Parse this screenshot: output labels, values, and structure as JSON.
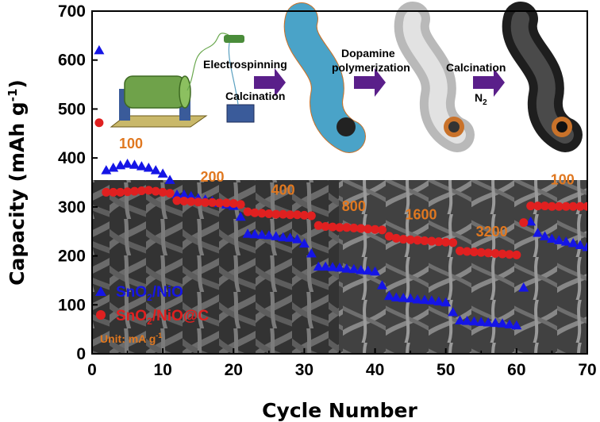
{
  "chart_data": {
    "type": "scatter",
    "xlabel": "Cycle Number",
    "ylabel": "Capacity (mAh g",
    "ylabel_sup": "-1",
    "ylabel_end": ")",
    "xlim": [
      0,
      70
    ],
    "ylim": [
      0,
      700
    ],
    "x_ticks": [
      "0",
      "10",
      "20",
      "30",
      "40",
      "50",
      "60",
      "70"
    ],
    "y_ticks": [
      "0",
      "100",
      "200",
      "300",
      "400",
      "500",
      "600",
      "700"
    ],
    "legend": {
      "placement": "lower-left",
      "unit_text": "Unit:  mA g",
      "unit_sup": "-1"
    },
    "rate_labels": [
      {
        "text": "100",
        "x": 5.5,
        "y": 420
      },
      {
        "text": "200",
        "x": 17,
        "y": 352
      },
      {
        "text": "400",
        "x": 27,
        "y": 325
      },
      {
        "text": "800",
        "x": 37,
        "y": 292
      },
      {
        "text": "1600",
        "x": 46.5,
        "y": 275
      },
      {
        "text": "3200",
        "x": 56.5,
        "y": 240
      },
      {
        "text": "100",
        "x": 66.5,
        "y": 346
      }
    ],
    "schematic_steps": [
      "Electrospinning",
      "Calcination",
      "Dopamine",
      "polymerization",
      "Calcination",
      "N",
      "2"
    ],
    "series": [
      {
        "name": "SnO",
        "name_sub": "2",
        "name_end": "/NiO",
        "color": "#1515e6",
        "marker": "triangle",
        "x": [
          1,
          2,
          3,
          4,
          5,
          6,
          7,
          8,
          9,
          10,
          11,
          12,
          13,
          14,
          15,
          16,
          17,
          18,
          19,
          20,
          21,
          22,
          23,
          24,
          25,
          26,
          27,
          28,
          29,
          30,
          31,
          32,
          33,
          34,
          35,
          36,
          37,
          38,
          39,
          40,
          41,
          42,
          43,
          44,
          45,
          46,
          47,
          48,
          49,
          50,
          51,
          52,
          53,
          54,
          55,
          56,
          57,
          58,
          59,
          60,
          61,
          62,
          63,
          64,
          65,
          66,
          67,
          68,
          69,
          70
        ],
        "y": [
          620,
          375,
          380,
          385,
          388,
          386,
          383,
          380,
          375,
          368,
          355,
          325,
          325,
          322,
          318,
          315,
          312,
          308,
          305,
          302,
          280,
          245,
          244,
          243,
          242,
          240,
          238,
          237,
          234,
          225,
          205,
          178,
          178,
          177,
          176,
          174,
          173,
          171,
          170,
          168,
          140,
          118,
          115,
          114,
          113,
          111,
          110,
          109,
          107,
          105,
          85,
          68,
          67,
          66,
          65,
          64,
          63,
          62,
          60,
          58,
          135,
          270,
          247,
          240,
          235,
          232,
          229,
          226,
          222,
          218
        ]
      },
      {
        "name": "SnO",
        "name_sub": "2",
        "name_end": "/NiO@C",
        "color": "#e02020",
        "marker": "circle",
        "x": [
          1,
          2,
          3,
          4,
          5,
          6,
          7,
          8,
          9,
          10,
          11,
          12,
          13,
          14,
          15,
          16,
          17,
          18,
          19,
          20,
          21,
          22,
          23,
          24,
          25,
          26,
          27,
          28,
          29,
          30,
          31,
          32,
          33,
          34,
          35,
          36,
          37,
          38,
          39,
          40,
          41,
          42,
          43,
          44,
          45,
          46,
          47,
          48,
          49,
          50,
          51,
          52,
          53,
          54,
          55,
          56,
          57,
          58,
          59,
          60,
          61,
          62,
          63,
          64,
          65,
          66,
          67,
          68,
          69,
          70
        ],
        "y": [
          472,
          330,
          330,
          330,
          331,
          332,
          333,
          334,
          332,
          330,
          328,
          313,
          312,
          311,
          310,
          309,
          309,
          308,
          308,
          307,
          305,
          290,
          288,
          287,
          286,
          285,
          285,
          284,
          284,
          283,
          282,
          262,
          260,
          259,
          258,
          258,
          257,
          256,
          255,
          254,
          253,
          240,
          236,
          234,
          233,
          232,
          231,
          230,
          229,
          228,
          227,
          210,
          209,
          208,
          207,
          206,
          205,
          204,
          203,
          202,
          268,
          302,
          302,
          302,
          301,
          301,
          301,
          301,
          301,
          301
        ]
      }
    ]
  }
}
